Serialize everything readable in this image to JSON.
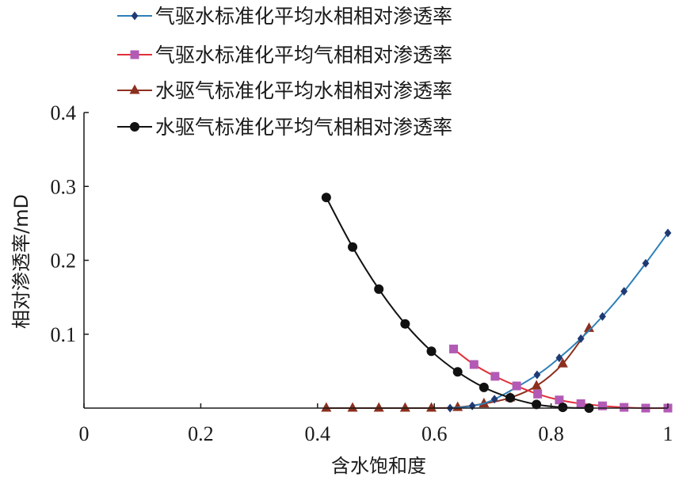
{
  "chart_data": {
    "type": "line",
    "xlabel": "含水饱和度",
    "ylabel": "相对渗透率/mD",
    "xlim": [
      0,
      1
    ],
    "ylim": [
      0,
      0.4
    ],
    "x_ticks": [
      "0",
      "0.2",
      "0.4",
      "0.6",
      "0.8",
      "1"
    ],
    "y_ticks": [
      "0.1",
      "0.2",
      "0.3",
      "0.4"
    ],
    "grid": false,
    "legend_position": "top",
    "series": [
      {
        "name": "气驱水标准化平均水相相对渗透率",
        "color": "#1f3a73",
        "line_color": "#2e7fb8",
        "marker": "diamond",
        "points": [
          [
            0.627,
            0.0
          ],
          [
            0.665,
            0.003
          ],
          [
            0.703,
            0.012
          ],
          [
            0.776,
            0.045
          ],
          [
            0.814,
            0.068
          ],
          [
            0.851,
            0.094
          ],
          [
            0.888,
            0.124
          ],
          [
            0.925,
            0.158
          ],
          [
            0.962,
            0.196
          ],
          [
            1.0,
            0.237
          ]
        ]
      },
      {
        "name": "气驱水标准化平均气相相对渗透率",
        "color": "#b25ab5",
        "line_color": "#e0303a",
        "marker": "square",
        "points": [
          [
            0.633,
            0.08
          ],
          [
            0.668,
            0.059
          ],
          [
            0.704,
            0.043
          ],
          [
            0.741,
            0.03
          ],
          [
            0.777,
            0.019
          ],
          [
            0.814,
            0.011
          ],
          [
            0.851,
            0.006
          ],
          [
            0.888,
            0.003
          ],
          [
            0.925,
            0.001
          ],
          [
            0.962,
            0.0
          ],
          [
            1.0,
            0.0
          ]
        ]
      },
      {
        "name": "水驱气标准化平均水相相对渗透率",
        "color": "#8c2f1e",
        "line_color": "#8c2f1e",
        "marker": "triangle",
        "points": [
          [
            0.415,
            0.0
          ],
          [
            0.46,
            0.0
          ],
          [
            0.505,
            0.0
          ],
          [
            0.55,
            0.0
          ],
          [
            0.595,
            0.0
          ],
          [
            0.64,
            0.001
          ],
          [
            0.685,
            0.006
          ],
          [
            0.73,
            0.014
          ],
          [
            0.775,
            0.03
          ],
          [
            0.82,
            0.06
          ],
          [
            0.865,
            0.108
          ]
        ]
      },
      {
        "name": "水驱气标准化平均气相相对渗透率",
        "color": "#111111",
        "line_color": "#111111",
        "marker": "circle",
        "points": [
          [
            0.415,
            0.285
          ],
          [
            0.46,
            0.218
          ],
          [
            0.505,
            0.161
          ],
          [
            0.55,
            0.114
          ],
          [
            0.595,
            0.077
          ],
          [
            0.64,
            0.049
          ],
          [
            0.685,
            0.028
          ],
          [
            0.73,
            0.014
          ],
          [
            0.775,
            0.005
          ],
          [
            0.82,
            0.001
          ],
          [
            0.865,
            0.0
          ]
        ]
      }
    ]
  }
}
